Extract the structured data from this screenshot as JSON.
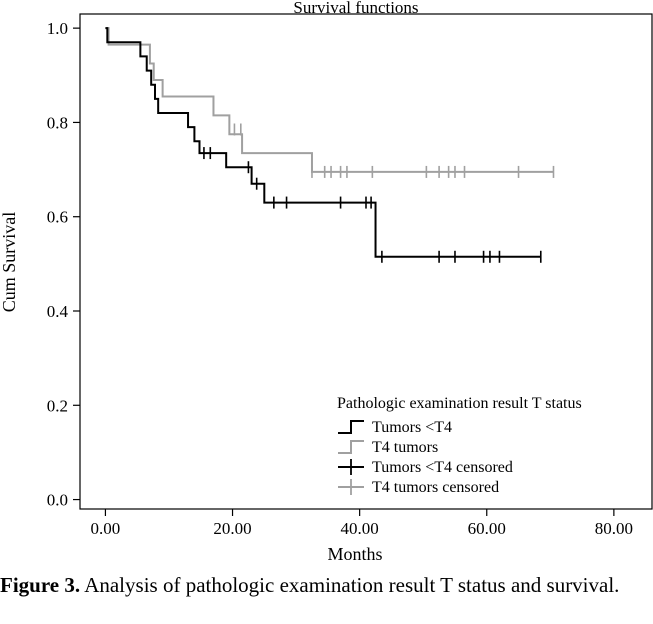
{
  "chart_data": {
    "type": "line",
    "subtype": "kaplan-meier-survival",
    "title": "Survival functions",
    "xlabel": "Months",
    "ylabel": "Cum Survival",
    "xlim": [
      -4,
      86
    ],
    "ylim": [
      -0.02,
      1.03
    ],
    "xticks": [
      0,
      20,
      40,
      60,
      80
    ],
    "xtick_labels": [
      "0.00",
      "20.00",
      "40.00",
      "60.00",
      "80.00"
    ],
    "yticks": [
      0,
      0.2,
      0.4,
      0.6,
      0.8,
      1.0
    ],
    "ytick_labels": [
      "0.0",
      "0.2",
      "0.4",
      "0.6",
      "0.8",
      "1.0"
    ],
    "grid": false,
    "legend": {
      "title": "Pathologic examination result T status",
      "position": "bottom-right",
      "entries": [
        "Tumors <T4",
        "T4 tumors",
        "Tumors <T4 censored",
        "T4 tumors censored"
      ]
    },
    "colors": {
      "tumors_lt_t4": "#000000",
      "t4_tumors": "#a0a0a0"
    },
    "series": [
      {
        "name": "Tumors <T4",
        "steps": [
          [
            0,
            1.0
          ],
          [
            0.3,
            0.97
          ],
          [
            5.5,
            0.94
          ],
          [
            6.5,
            0.91
          ],
          [
            7.2,
            0.88
          ],
          [
            7.8,
            0.85
          ],
          [
            8.3,
            0.82
          ],
          [
            13,
            0.79
          ],
          [
            14,
            0.76
          ],
          [
            14.8,
            0.735
          ],
          [
            19,
            0.705
          ],
          [
            23,
            0.67
          ],
          [
            25,
            0.63
          ],
          [
            42.5,
            0.515
          ],
          [
            68.5,
            0.515
          ]
        ],
        "censored": [
          [
            15.5,
            0.735
          ],
          [
            16.5,
            0.735
          ],
          [
            22.5,
            0.705
          ],
          [
            23.8,
            0.67
          ],
          [
            26.5,
            0.63
          ],
          [
            28.5,
            0.63
          ],
          [
            37,
            0.63
          ],
          [
            41,
            0.63
          ],
          [
            41.8,
            0.63
          ],
          [
            43.5,
            0.515
          ],
          [
            52.5,
            0.515
          ],
          [
            55,
            0.515
          ],
          [
            59.5,
            0.515
          ],
          [
            60.5,
            0.515
          ],
          [
            62,
            0.515
          ],
          [
            68.5,
            0.515
          ]
        ]
      },
      {
        "name": "T4 tumors",
        "steps": [
          [
            0,
            1.0
          ],
          [
            0.5,
            0.965
          ],
          [
            7,
            0.925
          ],
          [
            7.6,
            0.89
          ],
          [
            9,
            0.855
          ],
          [
            17,
            0.815
          ],
          [
            19.5,
            0.775
          ],
          [
            21.5,
            0.735
          ],
          [
            32.5,
            0.695
          ],
          [
            70.5,
            0.695
          ]
        ],
        "censored": [
          [
            0.5,
            0.985
          ],
          [
            20.3,
            0.785
          ],
          [
            21.3,
            0.785
          ],
          [
            32.5,
            0.695
          ],
          [
            34.5,
            0.695
          ],
          [
            35.5,
            0.695
          ],
          [
            37,
            0.695
          ],
          [
            38,
            0.695
          ],
          [
            42,
            0.695
          ],
          [
            50.5,
            0.695
          ],
          [
            52.5,
            0.695
          ],
          [
            54,
            0.695
          ],
          [
            55,
            0.695
          ],
          [
            56.5,
            0.695
          ],
          [
            65,
            0.695
          ],
          [
            70.5,
            0.695
          ]
        ]
      }
    ]
  },
  "caption": {
    "label": "Figure 3.",
    "text": " Analysis of pathologic examination result T status and survival."
  }
}
